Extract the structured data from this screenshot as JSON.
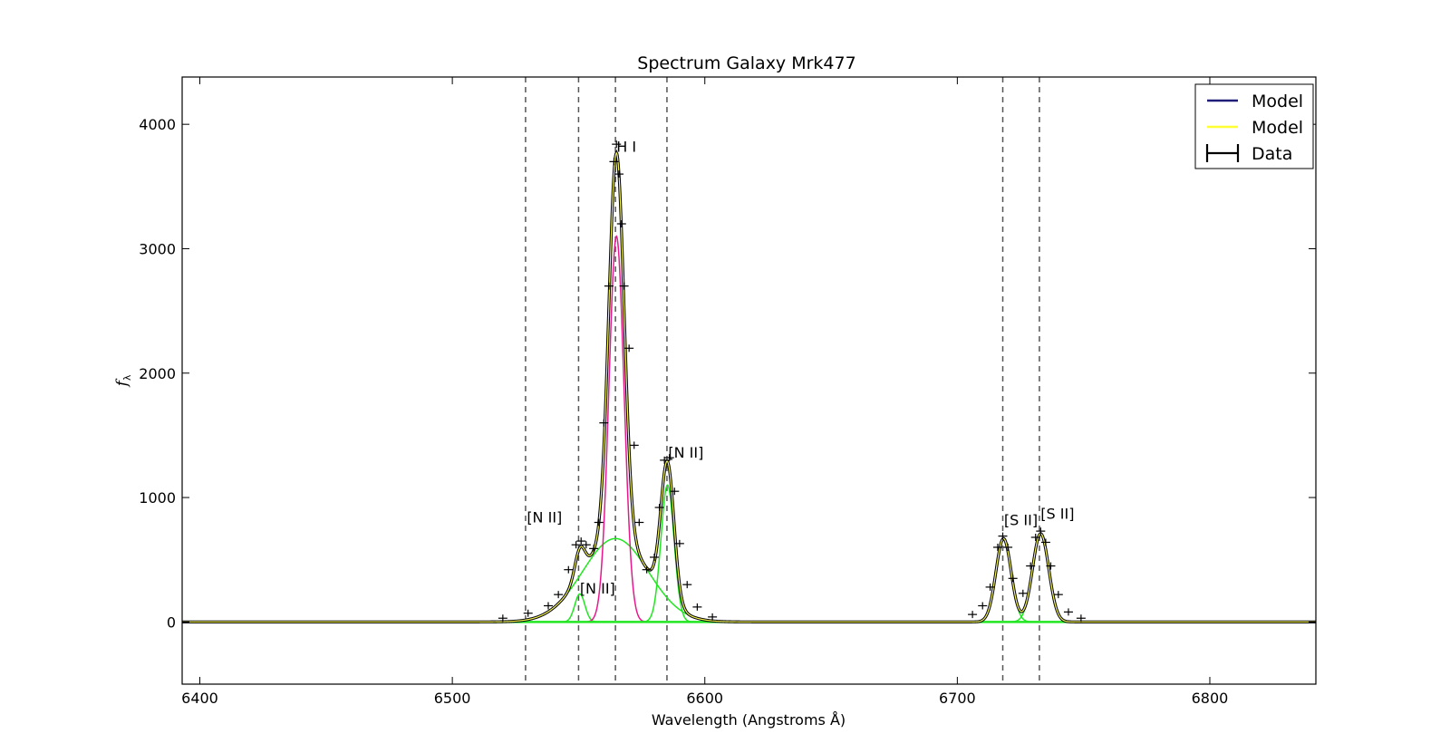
{
  "chart_data": {
    "type": "line",
    "title": "Spectrum Galaxy Mrk477",
    "xlabel": "Wavelength (Angstroms Å)",
    "ylabel": "fλ",
    "xlim": [
      6393,
      6842
    ],
    "ylim": [
      -500,
      4380
    ],
    "xticks": [
      6400,
      6500,
      6600,
      6700,
      6800
    ],
    "yticks": [
      0,
      1000,
      2000,
      3000,
      4000
    ],
    "grid": false,
    "legend_position": "top-right",
    "vlines": [
      6529,
      6550,
      6564.6,
      6585,
      6718,
      6732.5
    ],
    "annotations": [
      {
        "text": "H I",
        "x": 6565,
        "y": 3780
      },
      {
        "text": "[N II]",
        "x": 6585.5,
        "y": 1320
      },
      {
        "text": "[N II]",
        "x": 6529.5,
        "y": 800
      },
      {
        "text": "[N II]",
        "x": 6550.5,
        "y": 230
      },
      {
        "text": "[S II]",
        "x": 6718.5,
        "y": 780
      },
      {
        "text": "[S II]",
        "x": 6733,
        "y": 830
      }
    ],
    "legend": [
      {
        "label": "Model",
        "color": "#1f1f7a",
        "kind": "line"
      },
      {
        "label": "Model",
        "color": "#ffff33",
        "kind": "line"
      },
      {
        "label": "Data",
        "color": "#000000",
        "kind": "errorbar"
      }
    ],
    "components": [
      {
        "color": "#22e622",
        "kind": "gaussian",
        "center": 6564.6,
        "amplitude": 670,
        "sigma": 13
      },
      {
        "color": "#22e622",
        "kind": "gaussian",
        "center": 6585.2,
        "amplitude": 1100,
        "sigma": 2.6
      },
      {
        "color": "#22e622",
        "kind": "gaussian",
        "center": 6550.5,
        "amplitude": 225,
        "sigma": 2.0
      },
      {
        "color": "#22e622",
        "kind": "gaussian",
        "center": 6718.3,
        "amplitude": 670,
        "sigma": 3.0
      },
      {
        "color": "#22e622",
        "kind": "gaussian",
        "center": 6733.0,
        "amplitude": 710,
        "sigma": 3.2
      },
      {
        "color": "#e6198c",
        "kind": "gaussian",
        "center": 6565.0,
        "amplitude": 3100,
        "sigma": 3.0
      }
    ],
    "data_points": [
      {
        "x": 6520,
        "y": 30
      },
      {
        "x": 6530,
        "y": 70
      },
      {
        "x": 6538,
        "y": 130
      },
      {
        "x": 6542,
        "y": 220
      },
      {
        "x": 6546,
        "y": 420
      },
      {
        "x": 6549,
        "y": 620
      },
      {
        "x": 6551,
        "y": 650
      },
      {
        "x": 6553,
        "y": 620
      },
      {
        "x": 6556,
        "y": 590
      },
      {
        "x": 6558,
        "y": 800
      },
      {
        "x": 6560,
        "y": 1600
      },
      {
        "x": 6562,
        "y": 2700
      },
      {
        "x": 6564,
        "y": 3700
      },
      {
        "x": 6565,
        "y": 3840
      },
      {
        "x": 6566,
        "y": 3600
      },
      {
        "x": 6567,
        "y": 3200
      },
      {
        "x": 6568,
        "y": 2700
      },
      {
        "x": 6570,
        "y": 2200
      },
      {
        "x": 6572,
        "y": 1420
      },
      {
        "x": 6574,
        "y": 800
      },
      {
        "x": 6577,
        "y": 420
      },
      {
        "x": 6580,
        "y": 520
      },
      {
        "x": 6582,
        "y": 920
      },
      {
        "x": 6584,
        "y": 1300
      },
      {
        "x": 6586,
        "y": 1320
      },
      {
        "x": 6588,
        "y": 1050
      },
      {
        "x": 6590,
        "y": 630
      },
      {
        "x": 6593,
        "y": 300
      },
      {
        "x": 6597,
        "y": 120
      },
      {
        "x": 6603,
        "y": 40
      },
      {
        "x": 6706,
        "y": 60
      },
      {
        "x": 6710,
        "y": 130
      },
      {
        "x": 6713,
        "y": 280
      },
      {
        "x": 6716,
        "y": 600
      },
      {
        "x": 6718,
        "y": 690
      },
      {
        "x": 6720,
        "y": 600
      },
      {
        "x": 6722,
        "y": 350
      },
      {
        "x": 6726,
        "y": 230
      },
      {
        "x": 6729,
        "y": 450
      },
      {
        "x": 6731,
        "y": 680
      },
      {
        "x": 6733,
        "y": 730
      },
      {
        "x": 6735,
        "y": 640
      },
      {
        "x": 6737,
        "y": 450
      },
      {
        "x": 6740,
        "y": 220
      },
      {
        "x": 6744,
        "y": 80
      },
      {
        "x": 6749,
        "y": 30
      }
    ]
  }
}
